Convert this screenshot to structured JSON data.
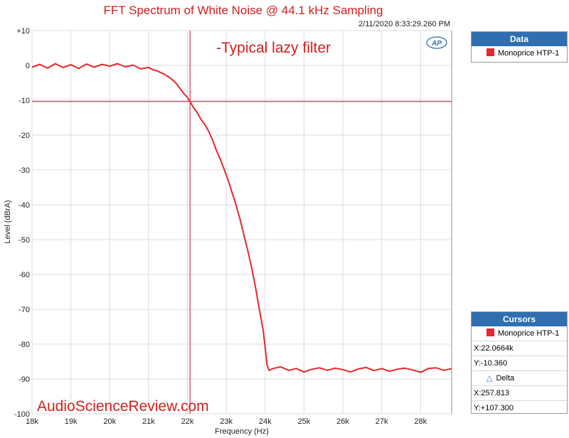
{
  "chart_data": {
    "type": "line",
    "title": "FFT Spectrum of White Noise @ 44.1 kHz Sampling",
    "timestamp": "2/11/2020 8:33:29.260 PM",
    "xlabel": "Frequency (Hz)",
    "ylabel": "Level (dBrA)",
    "xlim": [
      18000,
      28800
    ],
    "ylim": [
      -100,
      10
    ],
    "x_ticks": [
      18000,
      19000,
      20000,
      21000,
      22000,
      23000,
      24000,
      25000,
      26000,
      27000,
      28000
    ],
    "x_tick_labels": [
      "18k",
      "19k",
      "20k",
      "21k",
      "22k",
      "23k",
      "24k",
      "25k",
      "26k",
      "27k",
      "28k"
    ],
    "y_ticks": [
      10,
      0,
      -10,
      -20,
      -30,
      -40,
      -50,
      -60,
      -70,
      -80,
      -90,
      -100
    ],
    "y_tick_labels": [
      "+10",
      "0",
      "-10",
      "-20",
      "-30",
      "-40",
      "-50",
      "-60",
      "-70",
      "-80",
      "-90",
      "-100"
    ],
    "grid": true,
    "legend": "right",
    "annotation": "-Typical lazy filter",
    "watermark": "AudioScienceReview.com",
    "cursor": {
      "x": 22066.4,
      "y": -10.36
    },
    "series": [
      {
        "name": "Monoprice HTP-1",
        "color": "#e8262b",
        "x": [
          18000,
          18200,
          18400,
          18600,
          18800,
          19000,
          19200,
          19400,
          19600,
          19800,
          20000,
          20200,
          20400,
          20600,
          20800,
          21000,
          21100,
          21200,
          21300,
          21400,
          21500,
          21600,
          21700,
          21800,
          21900,
          22000,
          22066,
          22150,
          22250,
          22350,
          22450,
          22550,
          22650,
          22750,
          22850,
          22950,
          23050,
          23150,
          23250,
          23350,
          23450,
          23550,
          23650,
          23750,
          23850,
          23950,
          24000,
          24050,
          24100,
          24200,
          24400,
          24600,
          24800,
          25000,
          25200,
          25400,
          25600,
          25800,
          26000,
          26200,
          26400,
          26600,
          26800,
          27000,
          27200,
          27400,
          27600,
          27800,
          28000,
          28200,
          28400,
          28600,
          28800
        ],
        "values": [
          -0.5,
          0.3,
          -0.8,
          0.5,
          -0.6,
          0.2,
          -0.9,
          0.4,
          -0.5,
          0.3,
          -0.2,
          0.5,
          -0.4,
          0.1,
          -1.0,
          -0.6,
          -1.2,
          -1.5,
          -2.0,
          -2.5,
          -3.2,
          -4.0,
          -5.0,
          -6.5,
          -8.0,
          -9.2,
          -10.4,
          -12.0,
          -13.5,
          -15.5,
          -17.0,
          -19.0,
          -21.5,
          -24.5,
          -27.0,
          -30.0,
          -33.0,
          -36.5,
          -40.0,
          -44.0,
          -48.5,
          -53.0,
          -58.0,
          -63.5,
          -70.0,
          -76.0,
          -81.0,
          -86.0,
          -87.5,
          -87.0,
          -86.5,
          -87.5,
          -87.0,
          -88.0,
          -87.2,
          -86.8,
          -87.5,
          -86.9,
          -87.3,
          -88.0,
          -87.1,
          -86.7,
          -87.6,
          -87.0,
          -87.8,
          -87.2,
          -86.9,
          -87.4,
          -88.1,
          -87.0,
          -86.8,
          -87.5,
          -87.0
        ]
      }
    ]
  },
  "legend_panel": {
    "header": "Data",
    "entry": "Monoprice HTP-1"
  },
  "cursors_panel": {
    "header": "Cursors",
    "entry": "Monoprice HTP-1",
    "x": "X:22.0664k",
    "y": "Y:-10.360",
    "delta_label": "Delta",
    "delta_x": "X:257.813",
    "delta_y": "Y:+107.300"
  }
}
